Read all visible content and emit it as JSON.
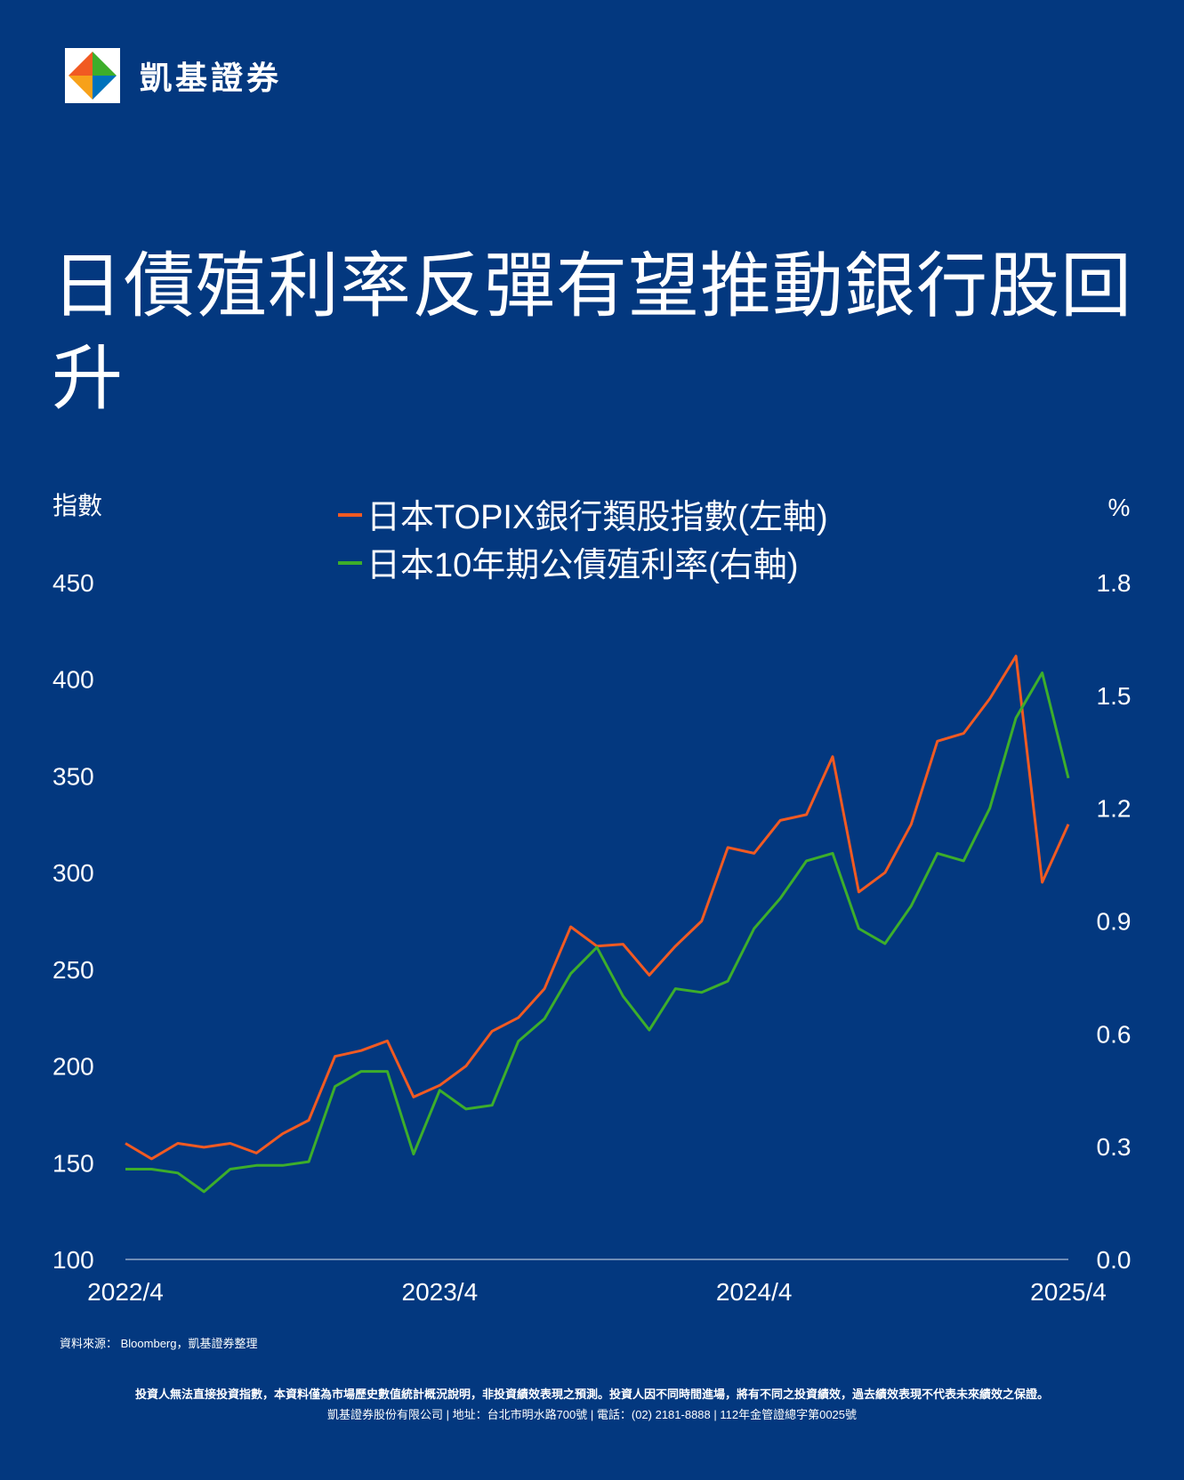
{
  "brand": {
    "name": "凱基證券"
  },
  "title": "日債殖利率反彈有望推動銀行股回升",
  "colors": {
    "background": "#03387f",
    "series_topix": "#f15a22",
    "series_jgb": "#3dae2b",
    "text": "#ffffff"
  },
  "chart_data": {
    "type": "line",
    "left_axis": {
      "label": "指數",
      "ylim": [
        100,
        450
      ],
      "ticks": [
        "450",
        "400",
        "350",
        "300",
        "250",
        "200",
        "150",
        "100"
      ]
    },
    "right_axis": {
      "label": "%",
      "ylim": [
        0.0,
        1.8
      ],
      "ticks": [
        "1.8",
        "1.5",
        "1.2",
        "0.9",
        "0.6",
        "0.3",
        "0.0"
      ]
    },
    "x_ticks": [
      "2022/4",
      "2023/4",
      "2024/4",
      "2025/4"
    ],
    "x_range": [
      "2022-04",
      "2025-04"
    ],
    "legend_position": "top-center",
    "series": [
      {
        "name": "日本TOPIX銀行類股指數(左軸)",
        "axis": "left",
        "x": [
          "2022-04",
          "2022-05",
          "2022-06",
          "2022-07",
          "2022-08",
          "2022-09",
          "2022-10",
          "2022-11",
          "2022-12",
          "2023-01",
          "2023-02",
          "2023-03",
          "2023-04",
          "2023-05",
          "2023-06",
          "2023-07",
          "2023-08",
          "2023-09",
          "2023-10",
          "2023-11",
          "2023-12",
          "2024-01",
          "2024-02",
          "2024-03",
          "2024-04",
          "2024-05",
          "2024-06",
          "2024-07",
          "2024-08",
          "2024-09",
          "2024-10",
          "2024-11",
          "2024-12",
          "2025-01",
          "2025-02",
          "2025-03",
          "2025-04"
        ],
        "values": [
          160,
          152,
          160,
          158,
          160,
          155,
          165,
          172,
          205,
          208,
          213,
          184,
          190,
          200,
          218,
          225,
          240,
          272,
          262,
          263,
          247,
          262,
          275,
          313,
          310,
          327,
          330,
          360,
          290,
          300,
          325,
          368,
          372,
          390,
          412,
          295,
          325
        ]
      },
      {
        "name": "日本10年期公債殖利率(右軸)",
        "axis": "right",
        "x": [
          "2022-04",
          "2022-05",
          "2022-06",
          "2022-07",
          "2022-08",
          "2022-09",
          "2022-10",
          "2022-11",
          "2022-12",
          "2023-01",
          "2023-02",
          "2023-03",
          "2023-04",
          "2023-05",
          "2023-06",
          "2023-07",
          "2023-08",
          "2023-09",
          "2023-10",
          "2023-11",
          "2023-12",
          "2024-01",
          "2024-02",
          "2024-03",
          "2024-04",
          "2024-05",
          "2024-06",
          "2024-07",
          "2024-08",
          "2024-09",
          "2024-10",
          "2024-11",
          "2024-12",
          "2025-01",
          "2025-02",
          "2025-03",
          "2025-04"
        ],
        "values": [
          0.24,
          0.24,
          0.23,
          0.18,
          0.24,
          0.25,
          0.25,
          0.26,
          0.46,
          0.5,
          0.5,
          0.28,
          0.45,
          0.4,
          0.41,
          0.58,
          0.64,
          0.76,
          0.83,
          0.7,
          0.61,
          0.72,
          0.71,
          0.74,
          0.88,
          0.96,
          1.06,
          1.08,
          0.88,
          0.84,
          0.94,
          1.08,
          1.06,
          1.2,
          1.44,
          1.56,
          1.28
        ]
      }
    ]
  },
  "source": "資料來源： Bloomberg，凱基證券整理",
  "disclaimer": "投資人無法直接投資指數，本資料僅為市場歷史數值統計概況說明，非投資績效表現之預測。投資人因不同時間進場，將有不同之投資績效，過去績效表現不代表未來績效之保證。",
  "company_info": "凱基證券股份有限公司 | 地址：台北市明水路700號 | 電話：(02) 2181-8888 | 112年金管證總字第0025號"
}
